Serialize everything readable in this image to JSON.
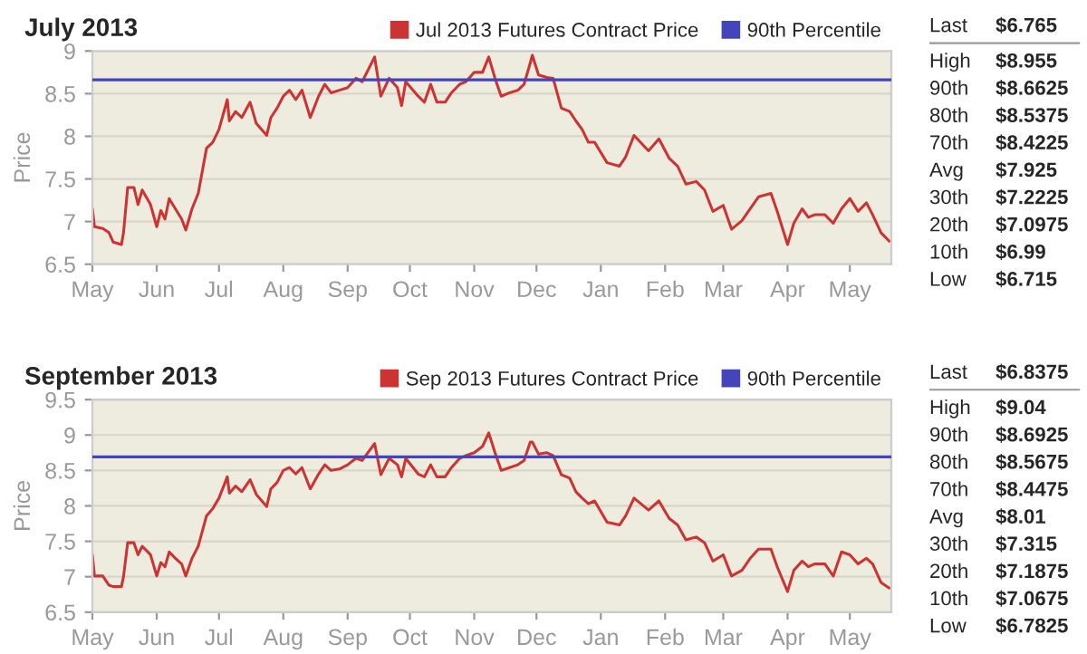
{
  "chart_data": [
    {
      "type": "line",
      "title": "July 2013",
      "ylabel": "Price",
      "legend": "top right",
      "grid": "y",
      "x": [
        "2012-05-01",
        "2012-05-02",
        "2012-05-06",
        "2012-05-09",
        "2012-05-11",
        "2012-05-15",
        "2012-05-16",
        "2012-05-18",
        "2012-05-21",
        "2012-05-23",
        "2012-05-25",
        "2012-05-29",
        "2012-06-01",
        "2012-06-03",
        "2012-06-05",
        "2012-06-07",
        "2012-06-10",
        "2012-06-13",
        "2012-06-15",
        "2012-06-18",
        "2012-06-21",
        "2012-06-25",
        "2012-06-28",
        "2012-07-01",
        "2012-07-05",
        "2012-07-06",
        "2012-07-09",
        "2012-07-12",
        "2012-07-16",
        "2012-07-19",
        "2012-07-24",
        "2012-07-26",
        "2012-07-29",
        "2012-08-01",
        "2012-08-04",
        "2012-08-07",
        "2012-08-10",
        "2012-08-14",
        "2012-08-18",
        "2012-08-21",
        "2012-08-24",
        "2012-08-28",
        "2012-09-01",
        "2012-09-05",
        "2012-09-08",
        "2012-09-14",
        "2012-09-17",
        "2012-09-21",
        "2012-09-25",
        "2012-09-27",
        "2012-09-29",
        "2012-10-05",
        "2012-10-08",
        "2012-10-11",
        "2012-10-14",
        "2012-10-18",
        "2012-10-21",
        "2012-10-25",
        "2012-10-28",
        "2012-11-01",
        "2012-11-05",
        "2012-11-08",
        "2012-11-11",
        "2012-11-14",
        "2012-11-18",
        "2012-11-22",
        "2012-11-25",
        "2012-11-28",
        "2012-11-29",
        "2012-12-02",
        "2012-12-06",
        "2012-12-09",
        "2012-12-13",
        "2012-12-17",
        "2012-12-20",
        "2012-12-23",
        "2012-12-26",
        "2012-12-29",
        "2013-01-04",
        "2013-01-10",
        "2013-01-13",
        "2013-01-17",
        "2013-01-24",
        "2013-01-29",
        "2013-02-03",
        "2013-02-07",
        "2013-02-11",
        "2013-02-16",
        "2013-02-20",
        "2013-02-24",
        "2013-03-01",
        "2013-03-05",
        "2013-03-10",
        "2013-03-14",
        "2013-03-18",
        "2013-03-24",
        "2013-03-27",
        "2013-04-01",
        "2013-04-04",
        "2013-04-08",
        "2013-04-11",
        "2013-04-14",
        "2013-04-19",
        "2013-04-23",
        "2013-04-27",
        "2013-05-01",
        "2013-05-05",
        "2013-05-09",
        "2013-05-12",
        "2013-05-16",
        "2013-05-20"
      ],
      "series": [
        {
          "name": "Jul 2013 Futures Contract Price",
          "color": "#cc3333",
          "values": [
            7.15,
            6.94,
            6.92,
            6.87,
            6.76,
            6.73,
            6.87,
            7.4,
            7.4,
            7.2,
            7.37,
            7.2,
            6.94,
            7.13,
            7.03,
            7.27,
            7.15,
            7.03,
            6.9,
            7.15,
            7.33,
            7.86,
            7.93,
            8.08,
            8.43,
            8.18,
            8.29,
            8.22,
            8.4,
            8.15,
            8.01,
            8.22,
            8.33,
            8.47,
            8.54,
            8.43,
            8.54,
            8.22,
            8.47,
            8.61,
            8.51,
            8.54,
            8.57,
            8.68,
            8.64,
            8.93,
            8.47,
            8.68,
            8.57,
            8.36,
            8.64,
            8.47,
            8.4,
            8.61,
            8.4,
            8.4,
            8.51,
            8.61,
            8.64,
            8.75,
            8.75,
            8.93,
            8.68,
            8.47,
            8.51,
            8.54,
            8.61,
            8.86,
            8.95,
            8.72,
            8.69,
            8.68,
            8.33,
            8.29,
            8.18,
            8.08,
            7.93,
            7.93,
            7.69,
            7.65,
            7.76,
            8.01,
            7.83,
            7.97,
            7.74,
            7.65,
            7.44,
            7.47,
            7.37,
            7.12,
            7.19,
            6.91,
            7.01,
            7.15,
            7.29,
            7.33,
            7.12,
            6.73,
            6.98,
            7.15,
            7.05,
            7.08,
            7.08,
            6.98,
            7.15,
            7.27,
            7.12,
            7.22,
            7.08,
            6.87,
            6.77
          ]
        }
      ],
      "ref_lines": [
        {
          "axis": "y",
          "value": 8.6625,
          "label": "90th Percentile",
          "color": "#4444bb"
        }
      ],
      "xlim": [
        "2012-05-01",
        "2013-05-21"
      ],
      "xticks": [
        {
          "value": "2012-05-01",
          "label": "May"
        },
        {
          "value": "2012-06-01",
          "label": "Jun"
        },
        {
          "value": "2012-07-01",
          "label": "Jul"
        },
        {
          "value": "2012-08-01",
          "label": "Aug"
        },
        {
          "value": "2012-09-01",
          "label": "Sep"
        },
        {
          "value": "2012-10-01",
          "label": "Oct"
        },
        {
          "value": "2012-11-01",
          "label": "Nov"
        },
        {
          "value": "2012-12-01",
          "label": "Dec"
        },
        {
          "value": "2013-01-01",
          "label": "Jan"
        },
        {
          "value": "2013-02-01",
          "label": "Feb"
        },
        {
          "value": "2013-03-01",
          "label": "Mar"
        },
        {
          "value": "2013-04-01",
          "label": "Apr"
        },
        {
          "value": "2013-05-01",
          "label": "May"
        }
      ],
      "ylim": [
        6.5,
        9
      ],
      "yticks": [
        6.5,
        7,
        7.5,
        8,
        8.5,
        9
      ]
    },
    {
      "type": "other",
      "annotations": [
        "Last",
        "$6.765",
        "High",
        "$8.955",
        "90th",
        "$8.6625",
        "80th",
        "$8.5375",
        "70th",
        "$8.4225",
        "Avg",
        "$7.925",
        "30th",
        "$7.2225",
        "20th",
        "$7.0975",
        "10th",
        "$6.99",
        "Low",
        "$6.715"
      ]
    },
    {
      "type": "line",
      "title": "September 2013",
      "ylabel": "Price",
      "legend": "top right",
      "grid": "y",
      "x": [
        "2012-05-01",
        "2012-05-02",
        "2012-05-06",
        "2012-05-09",
        "2012-05-11",
        "2012-05-15",
        "2012-05-16",
        "2012-05-18",
        "2012-05-21",
        "2012-05-23",
        "2012-05-25",
        "2012-05-29",
        "2012-06-01",
        "2012-06-03",
        "2012-06-05",
        "2012-06-07",
        "2012-06-10",
        "2012-06-13",
        "2012-06-15",
        "2012-06-18",
        "2012-06-21",
        "2012-06-25",
        "2012-06-28",
        "2012-07-01",
        "2012-07-05",
        "2012-07-06",
        "2012-07-09",
        "2012-07-12",
        "2012-07-16",
        "2012-07-19",
        "2012-07-24",
        "2012-07-26",
        "2012-07-29",
        "2012-08-01",
        "2012-08-04",
        "2012-08-07",
        "2012-08-10",
        "2012-08-14",
        "2012-08-18",
        "2012-08-21",
        "2012-08-24",
        "2012-08-28",
        "2012-09-01",
        "2012-09-05",
        "2012-09-08",
        "2012-09-14",
        "2012-09-17",
        "2012-09-21",
        "2012-09-25",
        "2012-09-27",
        "2012-09-29",
        "2012-10-05",
        "2012-10-08",
        "2012-10-11",
        "2012-10-14",
        "2012-10-18",
        "2012-10-21",
        "2012-10-25",
        "2012-10-28",
        "2012-11-01",
        "2012-11-05",
        "2012-11-08",
        "2012-11-11",
        "2012-11-14",
        "2012-11-18",
        "2012-11-22",
        "2012-11-25",
        "2012-11-28",
        "2012-11-29",
        "2012-12-02",
        "2012-12-06",
        "2012-12-09",
        "2012-12-13",
        "2012-12-17",
        "2012-12-20",
        "2012-12-23",
        "2012-12-26",
        "2012-12-29",
        "2013-01-04",
        "2013-01-10",
        "2013-01-13",
        "2013-01-17",
        "2013-01-24",
        "2013-01-29",
        "2013-02-03",
        "2013-02-07",
        "2013-02-11",
        "2013-02-16",
        "2013-02-20",
        "2013-02-24",
        "2013-03-01",
        "2013-03-05",
        "2013-03-10",
        "2013-03-14",
        "2013-03-18",
        "2013-03-24",
        "2013-03-27",
        "2013-04-01",
        "2013-04-04",
        "2013-04-08",
        "2013-04-11",
        "2013-04-14",
        "2013-04-19",
        "2013-04-23",
        "2013-04-27",
        "2013-05-01",
        "2013-05-05",
        "2013-05-09",
        "2013-05-12",
        "2013-05-16",
        "2013-05-20"
      ],
      "series": [
        {
          "name": "Sep 2013 Futures Contract Price",
          "color": "#cc3333",
          "values": [
            7.31,
            7.01,
            7.01,
            6.88,
            6.86,
            6.86,
            7.0,
            7.48,
            7.48,
            7.31,
            7.43,
            7.31,
            7.01,
            7.2,
            7.14,
            7.35,
            7.26,
            7.18,
            7.01,
            7.26,
            7.43,
            7.86,
            7.96,
            8.11,
            8.41,
            8.18,
            8.28,
            8.2,
            8.37,
            8.16,
            7.99,
            8.24,
            8.33,
            8.5,
            8.54,
            8.45,
            8.54,
            8.24,
            8.45,
            8.58,
            8.5,
            8.52,
            8.58,
            8.67,
            8.64,
            8.88,
            8.44,
            8.67,
            8.58,
            8.41,
            8.67,
            8.45,
            8.41,
            8.58,
            8.41,
            8.41,
            8.54,
            8.67,
            8.71,
            8.75,
            8.84,
            9.03,
            8.75,
            8.5,
            8.54,
            8.58,
            8.64,
            8.9,
            8.9,
            8.73,
            8.75,
            8.71,
            8.44,
            8.39,
            8.2,
            8.11,
            8.03,
            8.07,
            7.77,
            7.73,
            7.86,
            8.11,
            7.94,
            8.07,
            7.82,
            7.73,
            7.52,
            7.56,
            7.48,
            7.22,
            7.31,
            7.01,
            7.09,
            7.26,
            7.39,
            7.39,
            7.14,
            6.79,
            7.09,
            7.22,
            7.14,
            7.18,
            7.18,
            7.01,
            7.35,
            7.31,
            7.18,
            7.26,
            7.18,
            6.92,
            6.84
          ]
        }
      ],
      "ref_lines": [
        {
          "axis": "y",
          "value": 8.6925,
          "label": "90th Percentile",
          "color": "#4444bb"
        }
      ],
      "xlim": [
        "2012-05-01",
        "2013-05-21"
      ],
      "xticks": [
        {
          "value": "2012-05-01",
          "label": "May"
        },
        {
          "value": "2012-06-01",
          "label": "Jun"
        },
        {
          "value": "2012-07-01",
          "label": "Jul"
        },
        {
          "value": "2012-08-01",
          "label": "Aug"
        },
        {
          "value": "2012-09-01",
          "label": "Sep"
        },
        {
          "value": "2012-10-01",
          "label": "Oct"
        },
        {
          "value": "2012-11-01",
          "label": "Nov"
        },
        {
          "value": "2012-12-01",
          "label": "Dec"
        },
        {
          "value": "2013-01-01",
          "label": "Jan"
        },
        {
          "value": "2013-02-01",
          "label": "Feb"
        },
        {
          "value": "2013-03-01",
          "label": "Mar"
        },
        {
          "value": "2013-04-01",
          "label": "Apr"
        },
        {
          "value": "2013-05-01",
          "label": "May"
        }
      ],
      "ylim": [
        6.5,
        9.5
      ],
      "yticks": [
        6.5,
        7,
        7.5,
        8,
        8.5,
        9,
        9.5
      ]
    },
    {
      "type": "other",
      "annotations": [
        "Last",
        "$6.8375",
        "High",
        "$9.04",
        "90th",
        "$8.6925",
        "80th",
        "$8.5675",
        "70th",
        "$8.4475",
        "Avg",
        "$8.01",
        "30th",
        "$7.315",
        "20th",
        "$7.1875",
        "10th",
        "$7.0675",
        "Low",
        "$6.7825"
      ]
    }
  ]
}
